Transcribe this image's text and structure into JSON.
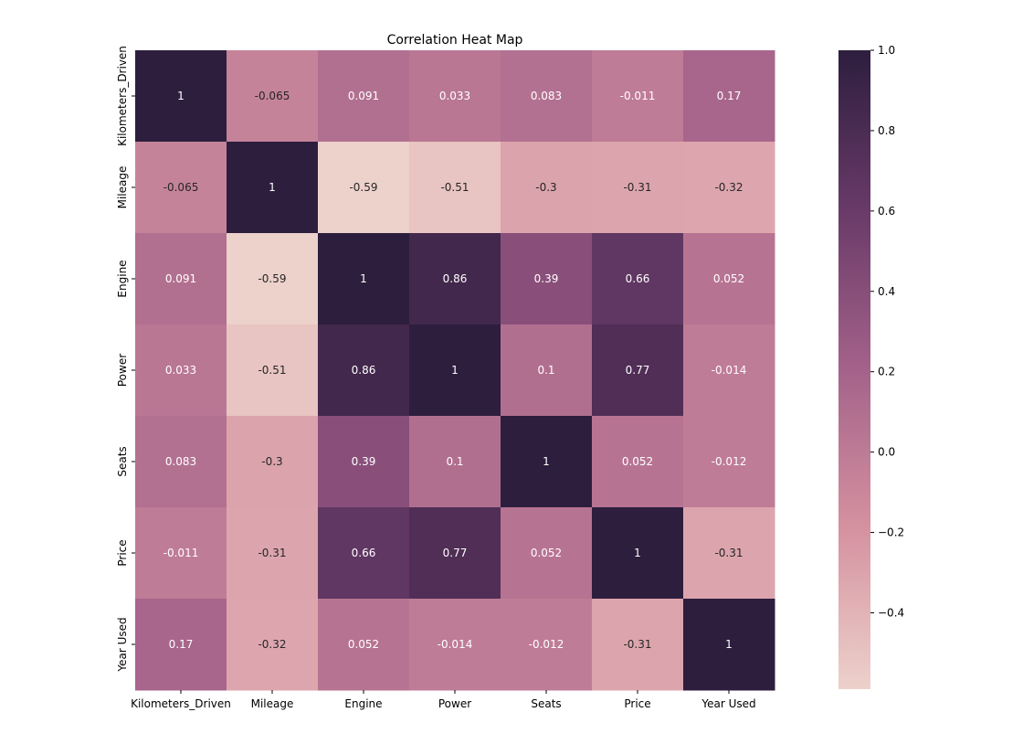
{
  "chart_data": {
    "type": "heatmap",
    "title": "Correlation Heat Map",
    "x_labels": [
      "Kilometers_Driven",
      "Mileage",
      "Engine",
      "Power",
      "Seats",
      "Price",
      "Year Used"
    ],
    "y_labels": [
      "Kilometers_Driven",
      "Mileage",
      "Engine",
      "Power",
      "Seats",
      "Price",
      "Year Used"
    ],
    "values": [
      [
        1,
        -0.065,
        0.091,
        0.033,
        0.083,
        -0.011,
        0.17
      ],
      [
        -0.065,
        1,
        -0.59,
        -0.51,
        -0.3,
        -0.31,
        -0.32
      ],
      [
        0.091,
        -0.59,
        1,
        0.86,
        0.39,
        0.66,
        0.052
      ],
      [
        0.033,
        -0.51,
        0.86,
        1,
        0.1,
        0.77,
        -0.014
      ],
      [
        0.083,
        -0.3,
        0.39,
        0.1,
        1,
        0.052,
        -0.012
      ],
      [
        -0.011,
        -0.31,
        0.66,
        0.77,
        0.052,
        1,
        -0.31
      ],
      [
        0.17,
        -0.32,
        0.052,
        -0.014,
        -0.012,
        -0.31,
        1
      ]
    ],
    "value_labels": [
      [
        "1",
        "-0.065",
        "0.091",
        "0.033",
        "0.083",
        "-0.011",
        "0.17"
      ],
      [
        "-0.065",
        "1",
        "-0.59",
        "-0.51",
        "-0.3",
        "-0.31",
        "-0.32"
      ],
      [
        "0.091",
        "-0.59",
        "1",
        "0.86",
        "0.39",
        "0.66",
        "0.052"
      ],
      [
        "0.033",
        "-0.51",
        "0.86",
        "1",
        "0.1",
        "0.77",
        "-0.014"
      ],
      [
        "0.083",
        "-0.3",
        "0.39",
        "0.1",
        "1",
        "0.052",
        "-0.012"
      ],
      [
        "-0.011",
        "-0.31",
        "0.66",
        "0.77",
        "0.052",
        "1",
        "-0.31"
      ],
      [
        "0.17",
        "-0.32",
        "0.052",
        "-0.014",
        "-0.012",
        "-0.31",
        "1"
      ]
    ],
    "color_range": [
      -0.59,
      1.0
    ],
    "colorbar_ticks": [
      "1.0",
      "0.8",
      "0.6",
      "0.4",
      "0.2",
      "0.0",
      "−0.2",
      "−0.4"
    ],
    "colorbar_tick_values": [
      1.0,
      0.8,
      0.6,
      0.4,
      0.2,
      0.0,
      -0.2,
      -0.4
    ],
    "colormap": {
      "stops": [
        0,
        0.25,
        0.5,
        0.75,
        1
      ],
      "colors": [
        "#edd1cb",
        "#d592a0",
        "#a4628a",
        "#693a68",
        "#2d1e3e"
      ]
    },
    "legend": "right",
    "grid": false
  }
}
